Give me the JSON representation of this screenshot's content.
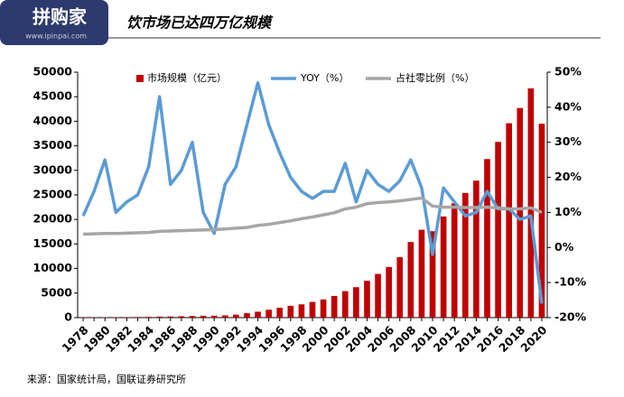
{
  "watermark": {
    "brand": "拼购家",
    "url": "www.ipinpai.com"
  },
  "source": "来源：国家统计局，国联证券研究所",
  "chart_data": {
    "type": "bar",
    "title": "饮市场已达四万亿规模",
    "categories": [
      "1978",
      null,
      "1980",
      null,
      "1982",
      null,
      "1984",
      null,
      "1986",
      null,
      "1988",
      null,
      "1990",
      null,
      "1992",
      null,
      "1994",
      null,
      "1996",
      null,
      "1998",
      null,
      "2000",
      null,
      "2002",
      null,
      "2004",
      null,
      "2006",
      null,
      "2008",
      null,
      "2010",
      null,
      "2012",
      null,
      "2014",
      null,
      "2016",
      null,
      "2018",
      null,
      "2020"
    ],
    "series": [
      {
        "name": "市场规模（亿元）",
        "type": "bar",
        "color": "#c00000",
        "values": [
          55,
          65,
          75,
          90,
          100,
          120,
          150,
          190,
          230,
          280,
          330,
          360,
          390,
          450,
          600,
          900,
          1200,
          1600,
          2000,
          2400,
          2700,
          3200,
          3700,
          4400,
          5400,
          6200,
          7500,
          8900,
          10300,
          12300,
          15400,
          17900,
          17600,
          20600,
          23300,
          25400,
          27900,
          32300,
          35800,
          39600,
          42700,
          46700,
          39500
        ]
      },
      {
        "name": "YOY（%）",
        "type": "line",
        "axis": "y2",
        "color": "#5b9bd5",
        "values": [
          9,
          16,
          25,
          10,
          13,
          15,
          23,
          43,
          18,
          22,
          30,
          10,
          4,
          18,
          23,
          35,
          47,
          35,
          27,
          20,
          16,
          14,
          16,
          16,
          24,
          13,
          22,
          18,
          16,
          19,
          25,
          17,
          -2,
          17,
          13,
          9,
          10,
          16,
          11,
          11,
          8,
          9,
          -16
        ]
      },
      {
        "name": "占社零比例（%）",
        "type": "line",
        "axis": "y2",
        "color": "#a6a6a6",
        "values": [
          3.8,
          3.9,
          4,
          4,
          4.1,
          4.2,
          4.3,
          4.6,
          4.7,
          4.8,
          4.9,
          5,
          5.1,
          5.3,
          5.5,
          5.7,
          6.3,
          6.6,
          7.1,
          7.6,
          8.2,
          8.7,
          9.3,
          9.9,
          11.0,
          11.5,
          12.5,
          12.8,
          13.0,
          13.3,
          13.7,
          14.1,
          11.8,
          11.5,
          11.5,
          11.4,
          11.4,
          11.5,
          11.3,
          11.0,
          11.0,
          11.3,
          10.0
        ]
      }
    ],
    "ylim": [
      0,
      50000
    ],
    "yticks": [
      0,
      5000,
      10000,
      15000,
      20000,
      25000,
      30000,
      35000,
      40000,
      45000,
      50000
    ],
    "y2lim": [
      -20,
      50
    ],
    "y2ticks": [
      {
        "value": -20,
        "label": "-20%"
      },
      {
        "value": -10,
        "label": "-10%"
      },
      {
        "value": 0,
        "label": "0%"
      },
      {
        "value": 10,
        "label": "10%"
      },
      {
        "value": 20,
        "label": "20%"
      },
      {
        "value": 30,
        "label": "30%"
      },
      {
        "value": 40,
        "label": "40%"
      },
      {
        "value": 50,
        "label": "50%"
      }
    ],
    "legend": "top",
    "grid": false
  }
}
